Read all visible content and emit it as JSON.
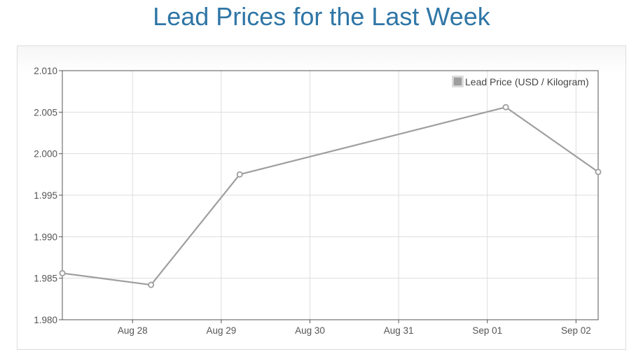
{
  "page": {
    "title": "Lead Prices for the Last Week"
  },
  "colors": {
    "title": "#2f76a6",
    "series": "#9e9e9e",
    "grid": "#dddddd",
    "axis": "#555555"
  },
  "chart_data": {
    "type": "line",
    "title": "Lead Prices for the Last Week",
    "xlabel": "",
    "ylabel": "",
    "x_ticks": [
      "Aug 28",
      "Aug 29",
      "Aug 30",
      "Aug 31",
      "Sep 01",
      "Sep 02"
    ],
    "xlim": [
      "2020-08-27T17:00",
      "2020-09-02T18:00"
    ],
    "ylim": [
      1.98,
      2.01
    ],
    "y_ticks": [
      1.98,
      1.985,
      1.99,
      1.995,
      2.0,
      2.005,
      2.01
    ],
    "grid": true,
    "legend_position": "top-right",
    "series": [
      {
        "name": "Lead Price (USD / Kilogram)",
        "x": [
          "2020-08-27T17:00",
          "2020-08-28T17:00",
          "2020-08-29T17:00",
          "2020-09-01T17:00",
          "2020-09-02T18:00"
        ],
        "y": [
          1.9856,
          1.9842,
          1.9975,
          2.0056,
          1.9978
        ]
      }
    ]
  }
}
